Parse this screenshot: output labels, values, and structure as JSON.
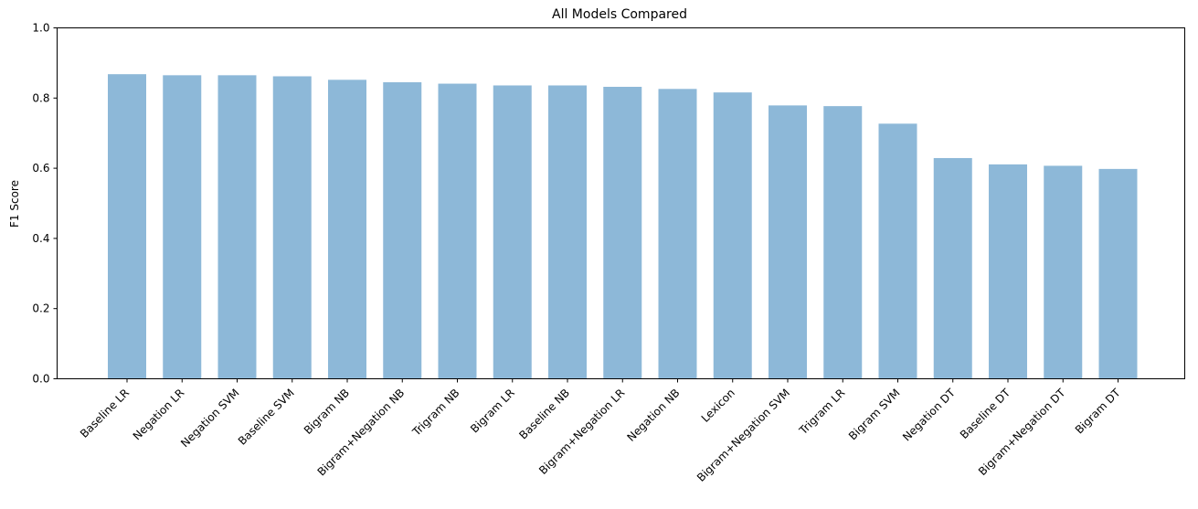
{
  "chart_data": {
    "type": "bar",
    "title": "All Models Compared",
    "xlabel": "",
    "ylabel": "F1 Score",
    "ylim": [
      0,
      1.0
    ],
    "yticks": [
      "0.0",
      "0.2",
      "0.4",
      "0.6",
      "0.8",
      "1.0"
    ],
    "grid": false,
    "bar_color": "#8db8d8",
    "categories": [
      "Baseline LR",
      "Negation LR",
      "Negation SVM",
      "Baseline SVM",
      "Bigram NB",
      "Bigram+Negation NB",
      "Trigram NB",
      "Bigram LR",
      "Baseline NB",
      "Bigram+Negation LR",
      "Negation NB",
      "Lexicon",
      "Bigram+Negation SVM",
      "Trigram LR",
      "Bigram SVM",
      "Negation DT",
      "Baseline DT",
      "Bigram+Negation DT",
      "Bigram DT"
    ],
    "values": [
      0.868,
      0.865,
      0.865,
      0.862,
      0.852,
      0.845,
      0.841,
      0.836,
      0.836,
      0.832,
      0.826,
      0.816,
      0.779,
      0.777,
      0.727,
      0.629,
      0.611,
      0.607,
      0.598
    ]
  }
}
